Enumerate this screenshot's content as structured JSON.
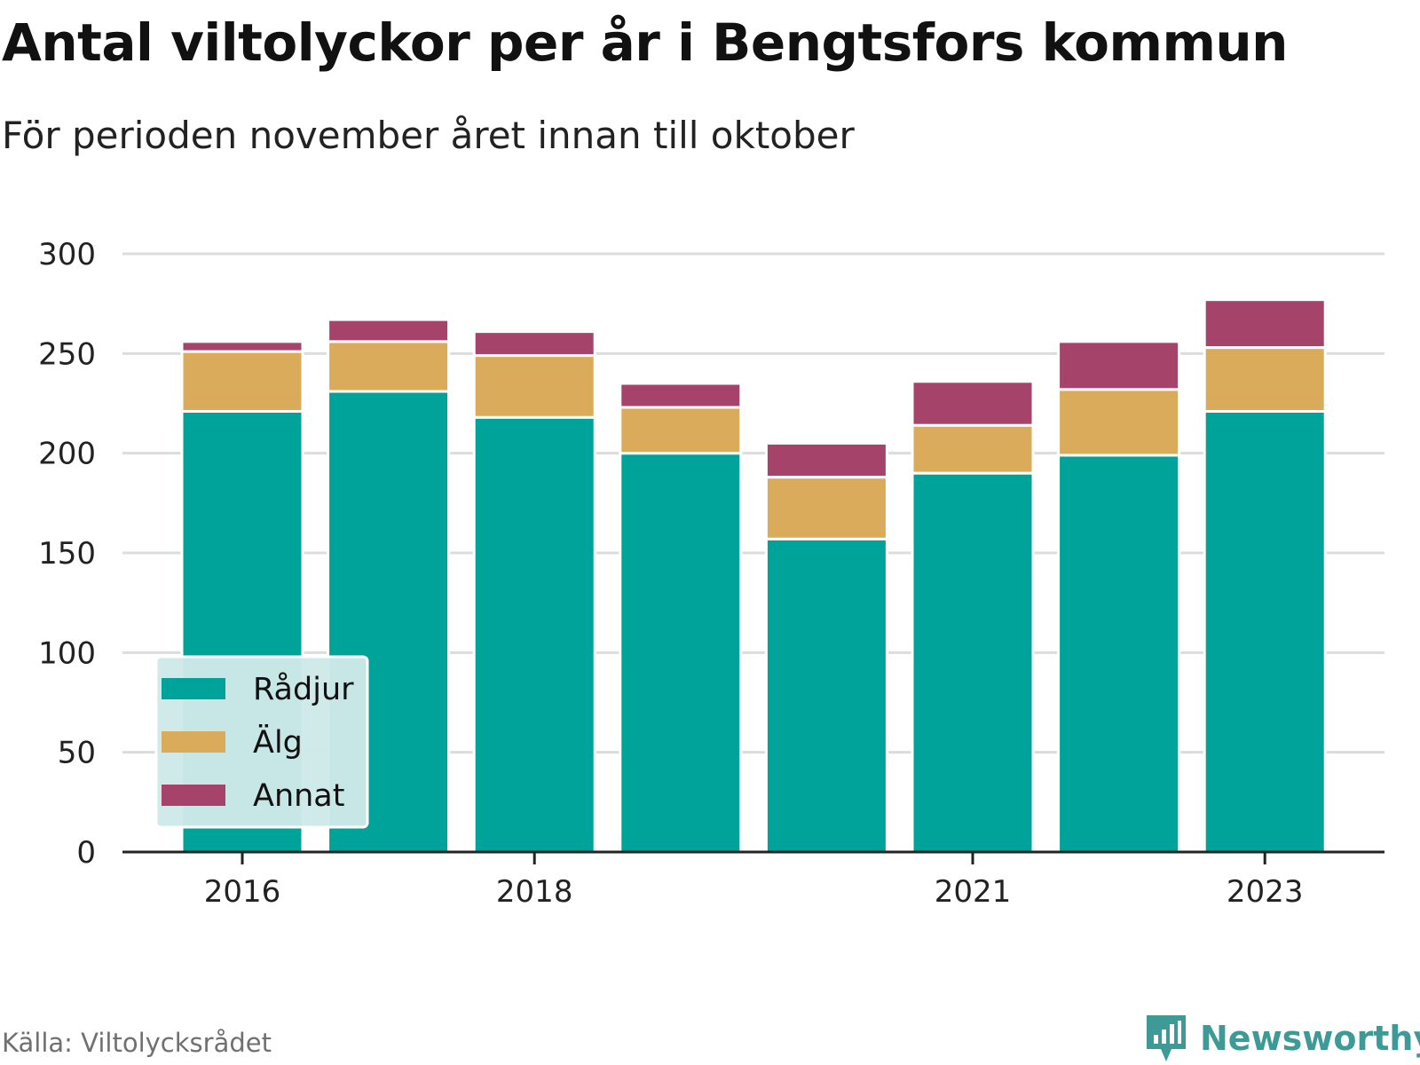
{
  "title": "Antal viltolyckor per år i Bengtsfors kommun",
  "subtitle": "För perioden november året innan till oktober",
  "source": "Källa: Viltolycksrådet",
  "brand": "Newsworthy",
  "colors": {
    "radjur": "#00a39a",
    "alg": "#d9ab5a",
    "annat": "#a5436a",
    "grid": "#dcdcdc",
    "axis": "#222222",
    "legend_bg": "#cde9e8",
    "brand": "#3d9a96"
  },
  "chart_data": {
    "type": "bar",
    "stacked": true,
    "categories": [
      "2016",
      "2017",
      "2018",
      "2019",
      "2020",
      "2021",
      "2022",
      "2023"
    ],
    "x_tick_labels": [
      "2016",
      "2018",
      "2021",
      "2023"
    ],
    "series": [
      {
        "name": "Rådjur",
        "color": "#00a39a",
        "values": [
          221,
          231,
          218,
          200,
          157,
          190,
          199,
          221
        ]
      },
      {
        "name": "Älg",
        "color": "#d9ab5a",
        "values": [
          30,
          25,
          31,
          23,
          31,
          24,
          33,
          32
        ]
      },
      {
        "name": "Annat",
        "color": "#a5436a",
        "values": [
          5,
          11,
          12,
          12,
          17,
          22,
          24,
          24
        ]
      }
    ],
    "ylim": [
      0,
      300
    ],
    "y_ticks": [
      0,
      50,
      100,
      150,
      200,
      250,
      300
    ],
    "grid": true,
    "legend_position": "bottom-left",
    "xlabel": "",
    "ylabel": ""
  }
}
